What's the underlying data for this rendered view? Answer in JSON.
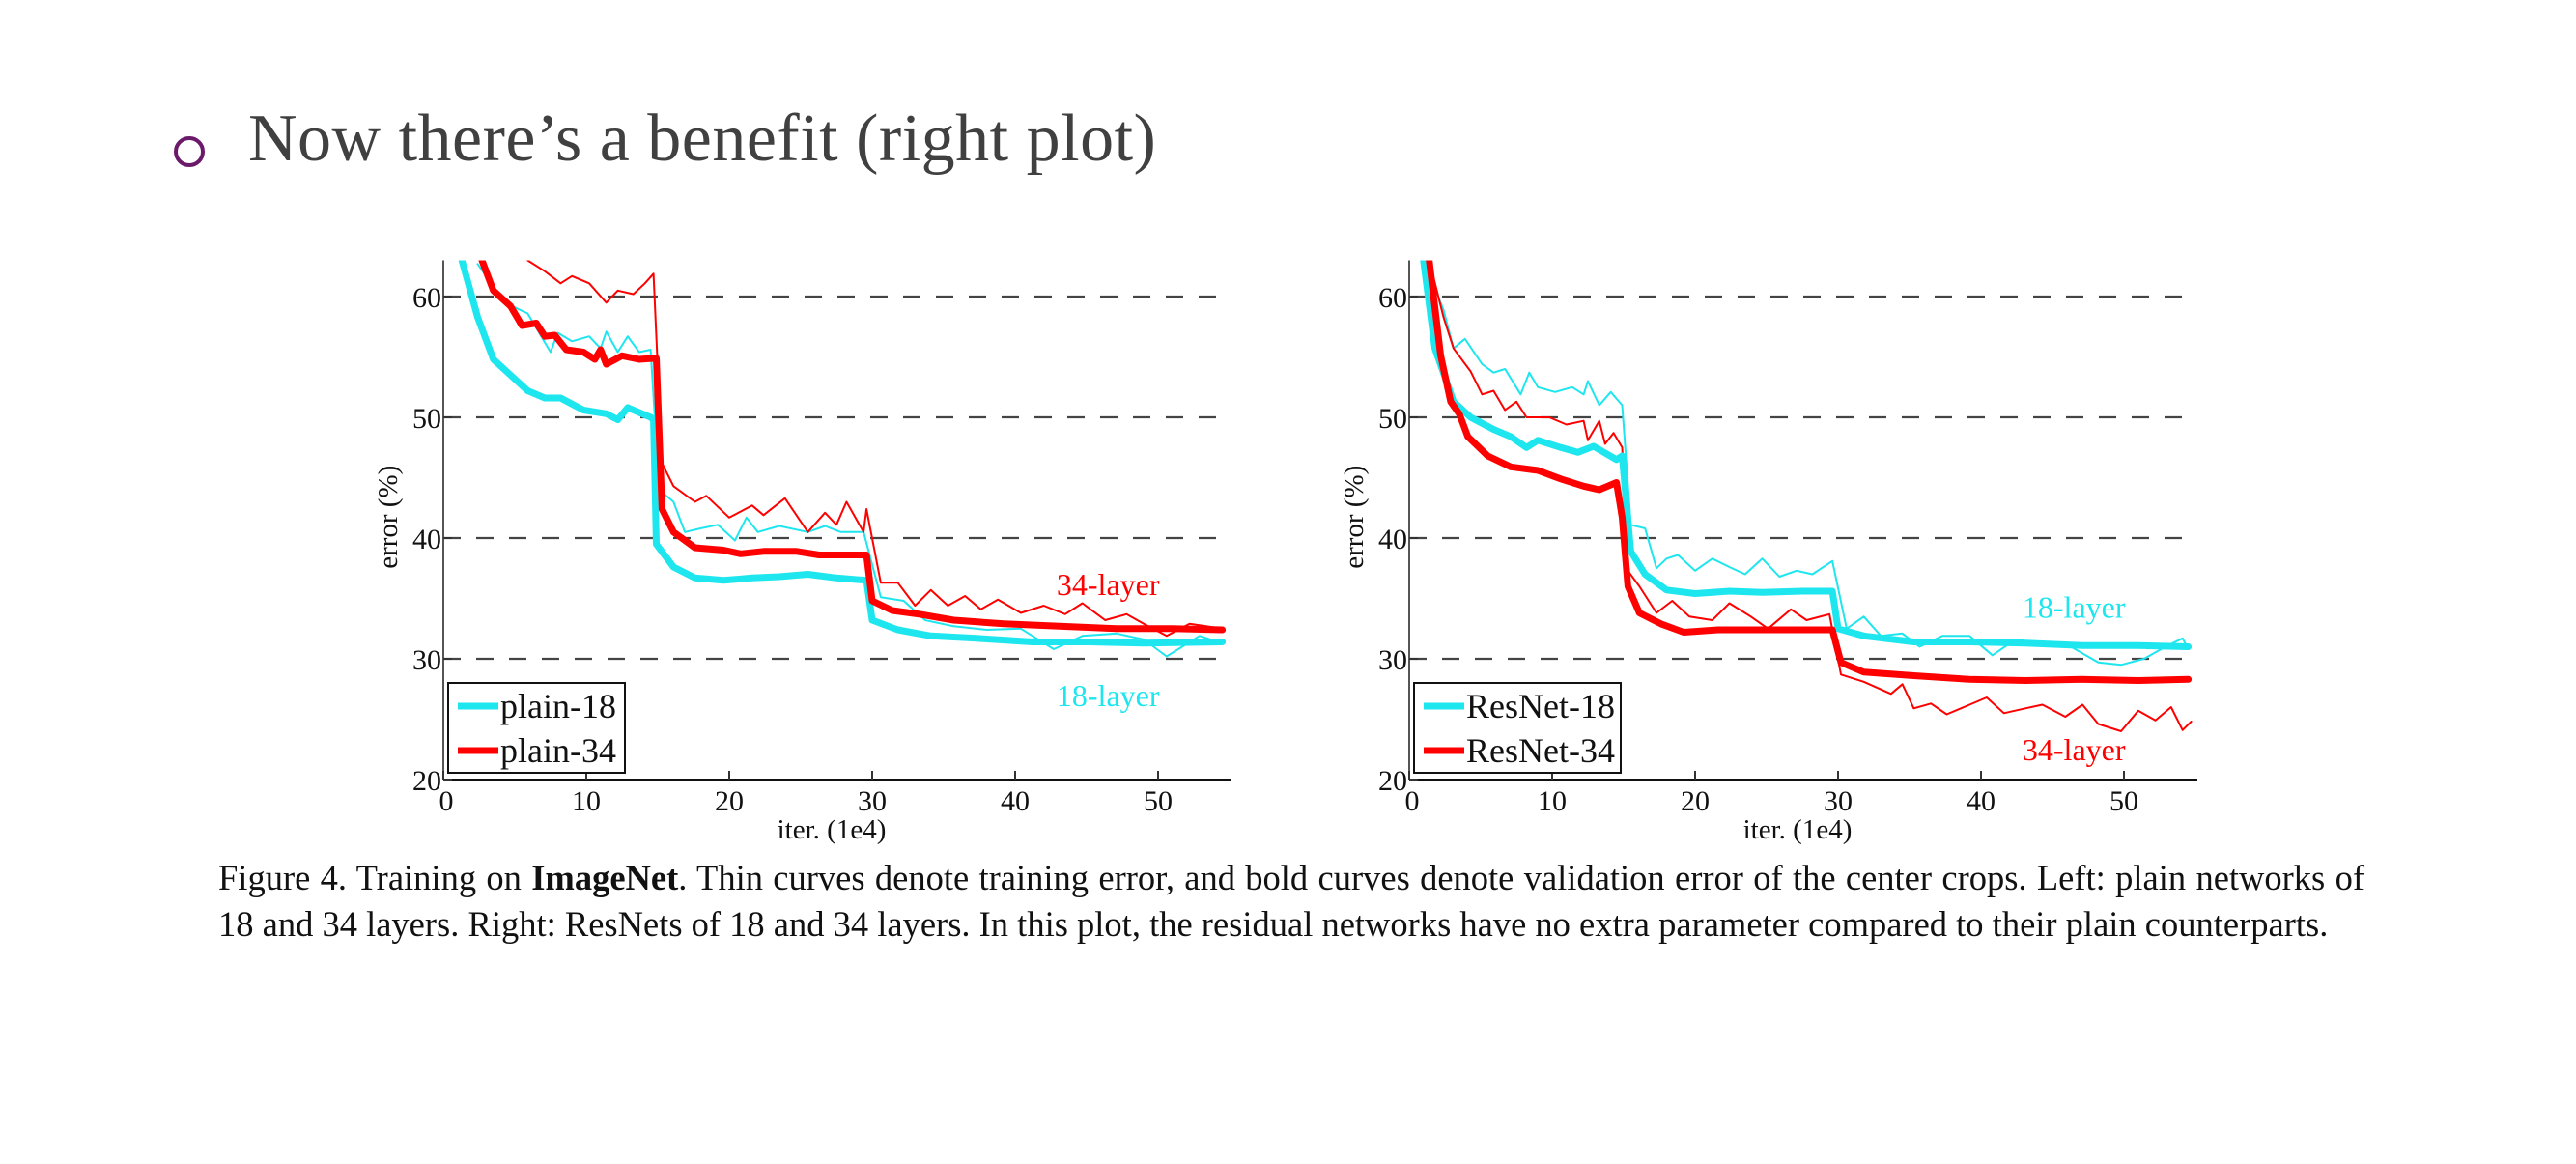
{
  "slide": {
    "bullet_text": "Now there’s a benefit (right plot)",
    "bullet_color": "#6b1a6b"
  },
  "caption": {
    "prefix": "Figure 4. Training on ",
    "bold": "ImageNet",
    "rest": ". Thin curves denote training error, and bold curves denote validation error of the center crops. Left: plain networks of 18 and 34 layers. Right: ResNets of 18 and 34 layers. In this plot, the residual networks have no extra parameter compared to their plain counterparts."
  },
  "colors": {
    "cyan": "#1ee6ee",
    "red": "#ff0000",
    "grid": "#444444"
  },
  "chart_data": [
    {
      "type": "line",
      "title": "",
      "xlabel": "iter. (1e4)",
      "ylabel": "error (%)",
      "xlim": [
        0,
        55
      ],
      "ylim": [
        20,
        63
      ],
      "xticks": [
        0,
        10,
        20,
        30,
        40,
        50
      ],
      "yticks": [
        20,
        30,
        40,
        50,
        60
      ],
      "grid": "dashed horizontal at 30, 40, 50, 60",
      "legend": {
        "placement": "bottom-left",
        "entries": [
          "plain-18",
          "plain-34"
        ]
      },
      "annotations": [
        {
          "text": "34-layer",
          "color": "red",
          "x": 46.5,
          "y": 35.3
        },
        {
          "text": "18-layer",
          "color": "cyan",
          "x": 46.5,
          "y": 26.1
        }
      ],
      "series": [
        {
          "name": "plain-18 (train)",
          "color": "cyan",
          "bold": false,
          "x": [
            2.4,
            4.3,
            5.9,
            7.5,
            8,
            9,
            10.2,
            11,
            11.4,
            12.2,
            12.9,
            13.7,
            14.5,
            15.1,
            16.1,
            16.9,
            18,
            19.2,
            20.4,
            21.2,
            22,
            23.5,
            25.5,
            26.7,
            27.8,
            29.4,
            30.6,
            32.2,
            33.7,
            35.7,
            38,
            40.4,
            42.7,
            44.7,
            47.1,
            49,
            50.6,
            52.9,
            54.5
          ],
          "y": [
            62.7,
            59.5,
            58.6,
            55.4,
            57,
            56.3,
            56.7,
            55.7,
            57.1,
            55.4,
            56.7,
            55.4,
            55.6,
            44,
            43,
            40.5,
            40.8,
            41.1,
            39.8,
            41.7,
            40.5,
            41,
            40.5,
            41,
            40.5,
            40.5,
            35.1,
            34.8,
            33.2,
            32.7,
            32.4,
            32.5,
            30.8,
            31.9,
            32.1,
            31.6,
            30.2,
            31.9,
            31.3
          ]
        },
        {
          "name": "plain-34 (train)",
          "color": "red",
          "bold": false,
          "x": [
            5.9,
            7.1,
            8.2,
            9,
            10.2,
            11.4,
            12.2,
            13.3,
            14.1,
            14.7,
            15.3,
            16.1,
            17.6,
            18.4,
            20,
            21.6,
            22.4,
            23.9,
            25.5,
            26.7,
            27.5,
            28.2,
            29.4,
            29.6,
            30.6,
            31.8,
            33,
            34.1,
            35.3,
            36.5,
            37.6,
            38.8,
            40.4,
            42,
            43.5,
            44.7,
            46.3,
            47.8,
            49,
            50.6,
            52.2,
            54.5
          ],
          "y": [
            63,
            62.1,
            61.1,
            61.7,
            61.1,
            59.5,
            60.5,
            60.2,
            61.1,
            61.9,
            46.2,
            44.3,
            43,
            43.5,
            41.7,
            42.7,
            41.9,
            43.3,
            40.5,
            42.1,
            41.1,
            43,
            40.5,
            42.4,
            36.3,
            36.3,
            34.4,
            35.7,
            34.4,
            35.2,
            34.1,
            34.9,
            33.8,
            34.4,
            33.7,
            34.6,
            33.2,
            33.7,
            32.9,
            31.9,
            32.9,
            32.5
          ]
        },
        {
          "name": "plain-18",
          "color": "cyan",
          "bold": true,
          "x": [
            1.3,
            2.4,
            3.5,
            4.7,
            5.9,
            7.1,
            8.2,
            9.8,
            11.4,
            12.2,
            12.9,
            14.5,
            14.7,
            14.9,
            16.1,
            17.6,
            19.6,
            21.6,
            23.5,
            25.5,
            27.5,
            29.6,
            30,
            31.8,
            34.1,
            37.3,
            41.2,
            45.1,
            49,
            54.5
          ],
          "y": [
            63,
            58.3,
            54.8,
            53.5,
            52.2,
            51.6,
            51.6,
            50.6,
            50.3,
            49.8,
            50.8,
            50,
            49.8,
            39.5,
            37.6,
            36.7,
            36.5,
            36.7,
            36.8,
            37,
            36.7,
            36.5,
            33.2,
            32.4,
            31.9,
            31.7,
            31.4,
            31.4,
            31.3,
            31.4
          ]
        },
        {
          "name": "plain-34",
          "color": "red",
          "bold": true,
          "x": [
            2.7,
            3.5,
            4.7,
            5.5,
            6.5,
            7.1,
            7.8,
            8.6,
            9.8,
            10.6,
            11,
            11.4,
            12.5,
            13.7,
            14.9,
            15.3,
            16.1,
            17.6,
            19.6,
            20.8,
            22.4,
            24.7,
            26.3,
            27.8,
            29.6,
            30,
            31.4,
            33.3,
            35.7,
            39.2,
            43.1,
            47.1,
            51,
            54.5
          ],
          "y": [
            63,
            60.5,
            59.2,
            57.6,
            57.8,
            56.7,
            56.8,
            55.6,
            55.4,
            54.8,
            55.6,
            54.4,
            55.1,
            54.8,
            54.9,
            42.4,
            40.5,
            39.2,
            39,
            38.7,
            38.9,
            38.9,
            38.6,
            38.6,
            38.6,
            34.8,
            34,
            33.7,
            33.2,
            32.9,
            32.7,
            32.5,
            32.5,
            32.4
          ]
        }
      ]
    },
    {
      "type": "line",
      "title": "",
      "xlabel": "iter. (1e4)",
      "ylabel": "error (%)",
      "xlim": [
        0,
        55
      ],
      "ylim": [
        20,
        63
      ],
      "xticks": [
        0,
        10,
        20,
        30,
        40,
        50
      ],
      "yticks": [
        20,
        30,
        40,
        50,
        60
      ],
      "grid": "dashed horizontal at 30, 40, 50, 60",
      "legend": {
        "placement": "bottom-left",
        "entries": [
          "ResNet-18",
          "ResNet-34"
        ]
      },
      "annotations": [
        {
          "text": "18-layer",
          "color": "cyan",
          "x": 46.5,
          "y": 33.4
        },
        {
          "text": "34-layer",
          "color": "red",
          "x": 46.5,
          "y": 21.6
        }
      ],
      "series": [
        {
          "name": "ResNet-18 (train)",
          "color": "cyan",
          "bold": false,
          "x": [
            1,
            2.4,
            3.1,
            3.9,
            5.1,
            5.9,
            6.7,
            7.8,
            8.4,
            9,
            10.2,
            11.4,
            12.2,
            12.5,
            13.3,
            14.1,
            14.9,
            15.5,
            16.5,
            17.3,
            18,
            18.8,
            20,
            21.2,
            22.4,
            23.5,
            24.7,
            25.9,
            27.1,
            28.2,
            29.6,
            30.6,
            31.8,
            33,
            34.5,
            35.7,
            37.3,
            39.2,
            40.8,
            42.4,
            44.3,
            46.3,
            48.2,
            49.8,
            51.4,
            52.9,
            54.1,
            54.5
          ],
          "y": [
            63,
            58.9,
            55.7,
            56.5,
            54.4,
            53.7,
            54,
            51.9,
            53.7,
            52.5,
            52.1,
            52.5,
            51.9,
            53,
            51,
            52.1,
            51,
            41.1,
            40.8,
            37.5,
            38.3,
            38.6,
            37.3,
            38.3,
            37.6,
            37,
            38.3,
            36.8,
            37.3,
            37,
            38.1,
            32.5,
            33.5,
            31.9,
            32.1,
            31,
            31.9,
            31.9,
            30.3,
            31.6,
            31.3,
            31,
            29.7,
            29.5,
            30,
            31,
            31.7,
            30.8
          ]
        },
        {
          "name": "ResNet-34 (train)",
          "color": "red",
          "bold": false,
          "x": [
            1.4,
            2.4,
            3.1,
            4.3,
            5.1,
            5.9,
            6.7,
            7.5,
            8.2,
            9.8,
            11,
            12.2,
            12.5,
            13.3,
            13.7,
            14.3,
            14.9,
            15.3,
            16.1,
            17.3,
            18.4,
            19.6,
            21.2,
            22.4,
            23.9,
            25.1,
            26.7,
            27.8,
            29.4,
            30.2,
            31.8,
            33.7,
            34.5,
            35.3,
            36.5,
            37.6,
            39.2,
            40.4,
            41.6,
            43.1,
            44.3,
            45.9,
            47.1,
            48.2,
            49.8,
            51,
            52.2,
            53.3,
            54.1,
            54.7
          ],
          "y": [
            63,
            58.3,
            55.7,
            53.8,
            51.9,
            52.2,
            50.6,
            51.3,
            50,
            50,
            49.4,
            49.7,
            48.1,
            49.7,
            47.8,
            48.7,
            47.5,
            37.3,
            36,
            33.8,
            34.8,
            33.5,
            33.2,
            34.6,
            33.5,
            32.5,
            34.1,
            33.2,
            33.7,
            28.7,
            28.1,
            27.1,
            27.9,
            25.9,
            26.3,
            25.4,
            26.2,
            26.8,
            25.5,
            25.9,
            26.2,
            25.2,
            26.2,
            24.6,
            24,
            25.7,
            24.9,
            26,
            24.1,
            24.8
          ]
        },
        {
          "name": "ResNet-18",
          "color": "cyan",
          "bold": true,
          "x": [
            1,
            1.8,
            3.1,
            4.3,
            5.9,
            7.1,
            8.2,
            9,
            10.6,
            11.8,
            12.9,
            14.5,
            14.9,
            15.5,
            16.5,
            18,
            20,
            22.4,
            24.7,
            27.5,
            29.6,
            30,
            31.8,
            35.3,
            39.2,
            43.1,
            47.1,
            51,
            54.5
          ],
          "y": [
            63,
            55.7,
            51.3,
            50,
            49,
            48.4,
            47.5,
            48.1,
            47.5,
            47.1,
            47.6,
            46.5,
            46.8,
            38.9,
            37,
            35.7,
            35.4,
            35.6,
            35.5,
            35.6,
            35.6,
            32.5,
            31.9,
            31.4,
            31.4,
            31.3,
            31.1,
            31.1,
            31
          ]
        },
        {
          "name": "ResNet-34",
          "color": "red",
          "bold": true,
          "x": [
            1.4,
            2.2,
            2.9,
            3.5,
            4.1,
            5.5,
            7.1,
            9,
            10.6,
            12.2,
            13.3,
            14.5,
            14.9,
            15.3,
            16.1,
            17.6,
            19.2,
            21.6,
            23.9,
            26.3,
            29.6,
            30.2,
            31.8,
            35.3,
            39.2,
            43.1,
            47.1,
            51,
            54.5
          ],
          "y": [
            63,
            55.1,
            51.3,
            50.3,
            48.4,
            46.8,
            45.9,
            45.6,
            44.9,
            44.3,
            44,
            44.6,
            41.7,
            36,
            33.8,
            32.9,
            32.2,
            32.4,
            32.4,
            32.4,
            32.4,
            29.7,
            28.9,
            28.6,
            28.3,
            28.2,
            28.3,
            28.2,
            28.3
          ]
        }
      ]
    }
  ]
}
